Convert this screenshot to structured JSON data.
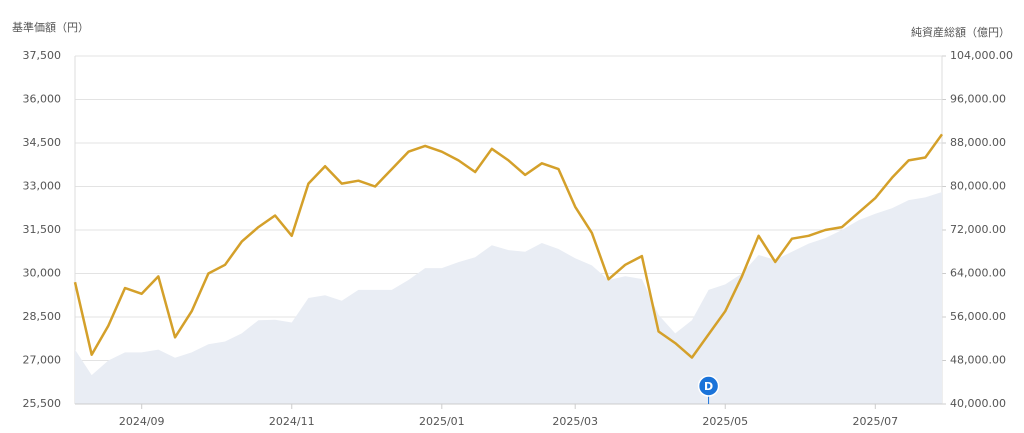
{
  "chart_data": {
    "type": "line",
    "y_axis_label": "基準価額（円）",
    "y2_axis_label": "純資産総額（億円）",
    "categories": [
      null,
      null,
      null,
      null,
      "2024/09",
      null,
      null,
      null,
      null,
      null,
      null,
      null,
      null,
      "2024/11",
      null,
      null,
      null,
      null,
      null,
      null,
      null,
      null,
      "2025/01",
      null,
      null,
      null,
      null,
      null,
      null,
      null,
      "2025/03",
      null,
      null,
      null,
      null,
      null,
      null,
      null,
      null,
      "2025/05",
      null,
      null,
      null,
      null,
      null,
      null,
      null,
      null,
      "2025/07",
      null,
      null,
      null,
      null
    ],
    "series": [
      {
        "name": "純資産総額",
        "color": "#e9edf4",
        "axis": "y2",
        "kind": "area",
        "values": [
          50000,
          45300,
          48000,
          49500,
          49500,
          50000,
          48500,
          49500,
          51000,
          51500,
          53000,
          55400,
          55500,
          55000,
          59500,
          60000,
          59000,
          61000,
          61000,
          61000,
          62800,
          65000,
          65000,
          66100,
          67000,
          69200,
          68300,
          68000,
          69600,
          68500,
          66800,
          65500,
          62800,
          63500,
          63000,
          56400,
          53000,
          55400,
          61000,
          62000,
          64000,
          67400,
          66500,
          68000,
          69500,
          70500,
          72000,
          73800,
          75000,
          76000,
          77500,
          78000,
          79000
        ]
      },
      {
        "name": "基準価額",
        "color": "#d4a02a",
        "axis": "y",
        "kind": "line",
        "values": [
          29700,
          27200,
          28200,
          29500,
          29300,
          29900,
          27800,
          28700,
          30000,
          30300,
          31100,
          31600,
          32000,
          31300,
          33100,
          33700,
          33100,
          33200,
          33000,
          33600,
          34200,
          34400,
          34200,
          33900,
          33500,
          34300,
          33900,
          33400,
          33800,
          33600,
          32300,
          31400,
          29800,
          30300,
          30600,
          28000,
          27600,
          27100,
          27900,
          28700,
          29900,
          31300,
          30400,
          31200,
          31300,
          31500,
          31600,
          32100,
          32600,
          33300,
          33900,
          34000,
          34800
        ]
      }
    ],
    "markers": [
      {
        "label": "D",
        "at": 38,
        "color": "#1a73d9"
      }
    ],
    "ylim": [
      25500,
      37500
    ],
    "yticks": [
      {
        "value": 25500,
        "label": "25,500"
      },
      {
        "value": 27000,
        "label": "27,000"
      },
      {
        "value": 28500,
        "label": "28,500"
      },
      {
        "value": 30000,
        "label": "30,000"
      },
      {
        "value": 31500,
        "label": "31,500"
      },
      {
        "value": 33000,
        "label": "33,000"
      },
      {
        "value": 34500,
        "label": "34,500"
      },
      {
        "value": 36000,
        "label": "36,000"
      },
      {
        "value": 37500,
        "label": "37,500"
      }
    ],
    "y2lim": [
      40000,
      104000
    ],
    "y2ticks": [
      {
        "value": 40000,
        "label": "40,000.00"
      },
      {
        "value": 48000,
        "label": "48,000.00"
      },
      {
        "value": 56000,
        "label": "56,000.00"
      },
      {
        "value": 64000,
        "label": "64,000.00"
      },
      {
        "value": 72000,
        "label": "72,000.00"
      },
      {
        "value": 80000,
        "label": "80,000.00"
      },
      {
        "value": 88000,
        "label": "88,000.00"
      },
      {
        "value": 96000,
        "label": "96,000.00"
      },
      {
        "value": 104000,
        "label": "104,000.00"
      }
    ],
    "grid": true
  }
}
